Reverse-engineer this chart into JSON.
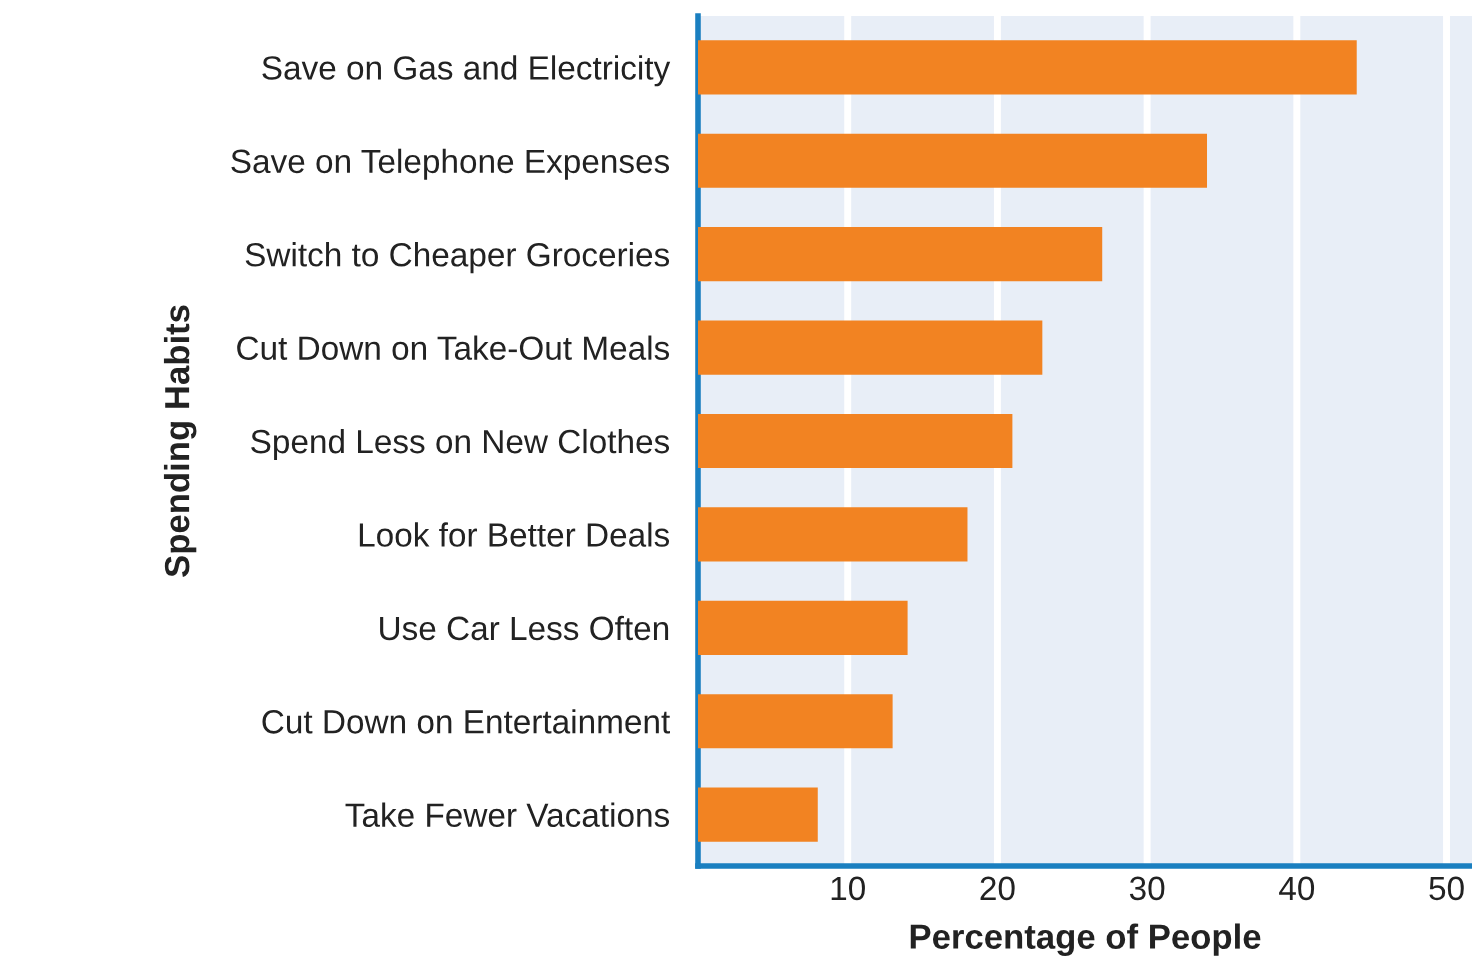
{
  "chart_data": {
    "type": "bar",
    "orientation": "horizontal",
    "xlabel": "Percentage of People",
    "ylabel": "Spending Habits",
    "categories": [
      "Save on Gas and Electricity",
      "Save on Telephone Expenses",
      "Switch to Cheaper Groceries",
      "Cut Down on Take-Out Meals",
      "Spend Less on New Clothes",
      "Look for Better Deals",
      "Use Car Less Often",
      "Cut Down on Entertainment",
      "Take Fewer Vacations"
    ],
    "values": [
      44,
      34,
      27,
      23,
      21,
      18,
      14,
      13,
      8
    ],
    "color": "#f28322",
    "xlim": [
      0,
      51.7
    ],
    "xticks": [
      10,
      20,
      30,
      40,
      50
    ],
    "grid": "x"
  }
}
